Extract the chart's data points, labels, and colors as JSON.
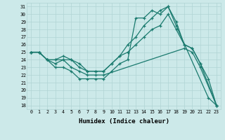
{
  "title": "",
  "xlabel": "Humidex (Indice chaleur)",
  "ylabel": "",
  "background_color": "#cce9e9",
  "grid_color": "#b0d4d4",
  "line_color": "#1a7a6e",
  "xlim": [
    -0.5,
    23.5
  ],
  "ylim": [
    17.5,
    31.5
  ],
  "xticks": [
    0,
    1,
    2,
    3,
    4,
    5,
    6,
    7,
    8,
    9,
    10,
    11,
    12,
    13,
    14,
    15,
    16,
    17,
    18,
    19,
    20,
    21,
    22,
    23
  ],
  "yticks": [
    18,
    19,
    20,
    21,
    22,
    23,
    24,
    25,
    26,
    27,
    28,
    29,
    30,
    31
  ],
  "series": [
    [
      25.0,
      25.0,
      24.0,
      23.0,
      23.0,
      22.5,
      21.5,
      21.5,
      21.5,
      21.5,
      22.5,
      23.5,
      24.0,
      29.5,
      29.5,
      30.5,
      30.0,
      31.0,
      28.5,
      null,
      null,
      null,
      19.0,
      18.0
    ],
    [
      25.0,
      25.0,
      24.0,
      23.5,
      24.0,
      23.0,
      22.5,
      22.0,
      22.0,
      22.0,
      null,
      null,
      null,
      null,
      null,
      null,
      null,
      null,
      null,
      25.5,
      25.0,
      23.0,
      null,
      18.0
    ],
    [
      25.0,
      25.0,
      24.0,
      24.0,
      24.0,
      24.0,
      23.0,
      22.5,
      22.5,
      22.5,
      23.5,
      24.5,
      25.0,
      26.0,
      27.0,
      28.0,
      28.5,
      30.0,
      28.0,
      26.0,
      25.5,
      23.5,
      null,
      18.0
    ],
    [
      25.0,
      25.0,
      24.0,
      24.0,
      24.5,
      24.0,
      23.5,
      22.5,
      22.5,
      22.5,
      23.5,
      24.5,
      26.0,
      27.0,
      28.5,
      29.5,
      30.5,
      31.0,
      29.0,
      26.0,
      25.5,
      23.5,
      21.5,
      18.0
    ]
  ]
}
